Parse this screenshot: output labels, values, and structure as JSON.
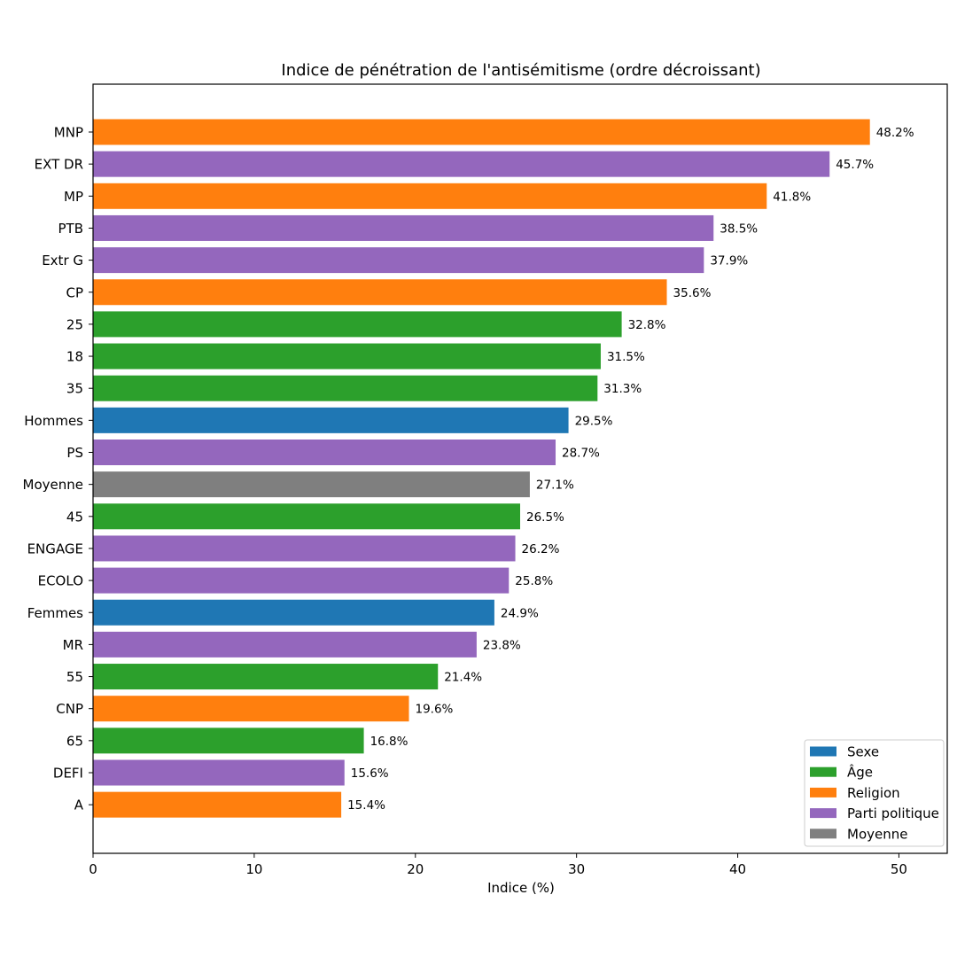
{
  "chart_data": {
    "type": "bar",
    "orientation": "horizontal",
    "title": "Indice de pénétration de l'antisémitisme (ordre décroissant)",
    "xlabel": "Indice (%)",
    "ylabel": "",
    "xlim": [
      0,
      53
    ],
    "xticks": [
      0,
      10,
      20,
      30,
      40,
      50
    ],
    "grid": false,
    "legend_position": "lower-right",
    "groups": [
      {
        "key": "sexe",
        "name": "Sexe",
        "color": "#1f77b4"
      },
      {
        "key": "age",
        "name": "Âge",
        "color": "#2ca02c"
      },
      {
        "key": "religion",
        "name": "Religion",
        "color": "#ff7f0e"
      },
      {
        "key": "parti",
        "name": "Parti politique",
        "color": "#9467bd"
      },
      {
        "key": "moyenne",
        "name": "Moyenne",
        "color": "#7f7f7f"
      }
    ],
    "bars": [
      {
        "label": "MNP",
        "value": 48.2,
        "value_label": "48.2%",
        "group": "religion"
      },
      {
        "label": "EXT DR",
        "value": 45.7,
        "value_label": "45.7%",
        "group": "parti"
      },
      {
        "label": "MP",
        "value": 41.8,
        "value_label": "41.8%",
        "group": "religion"
      },
      {
        "label": "PTB",
        "value": 38.5,
        "value_label": "38.5%",
        "group": "parti"
      },
      {
        "label": "Extr G",
        "value": 37.9,
        "value_label": "37.9%",
        "group": "parti"
      },
      {
        "label": "CP",
        "value": 35.6,
        "value_label": "35.6%",
        "group": "religion"
      },
      {
        "label": "25",
        "value": 32.8,
        "value_label": "32.8%",
        "group": "age"
      },
      {
        "label": "18",
        "value": 31.5,
        "value_label": "31.5%",
        "group": "age"
      },
      {
        "label": "35",
        "value": 31.3,
        "value_label": "31.3%",
        "group": "age"
      },
      {
        "label": "Hommes",
        "value": 29.5,
        "value_label": "29.5%",
        "group": "sexe"
      },
      {
        "label": "PS",
        "value": 28.7,
        "value_label": "28.7%",
        "group": "parti"
      },
      {
        "label": "Moyenne",
        "value": 27.1,
        "value_label": "27.1%",
        "group": "moyenne"
      },
      {
        "label": "45",
        "value": 26.5,
        "value_label": "26.5%",
        "group": "age"
      },
      {
        "label": "ENGAGE",
        "value": 26.2,
        "value_label": "26.2%",
        "group": "parti"
      },
      {
        "label": "ECOLO",
        "value": 25.8,
        "value_label": "25.8%",
        "group": "parti"
      },
      {
        "label": "Femmes",
        "value": 24.9,
        "value_label": "24.9%",
        "group": "sexe"
      },
      {
        "label": "MR",
        "value": 23.8,
        "value_label": "23.8%",
        "group": "parti"
      },
      {
        "label": "55",
        "value": 21.4,
        "value_label": "21.4%",
        "group": "age"
      },
      {
        "label": "CNP",
        "value": 19.6,
        "value_label": "19.6%",
        "group": "religion"
      },
      {
        "label": "65",
        "value": 16.8,
        "value_label": "16.8%",
        "group": "age"
      },
      {
        "label": "DEFI",
        "value": 15.6,
        "value_label": "15.6%",
        "group": "parti"
      },
      {
        "label": "A",
        "value": 15.4,
        "value_label": "15.4%",
        "group": "religion"
      }
    ]
  }
}
